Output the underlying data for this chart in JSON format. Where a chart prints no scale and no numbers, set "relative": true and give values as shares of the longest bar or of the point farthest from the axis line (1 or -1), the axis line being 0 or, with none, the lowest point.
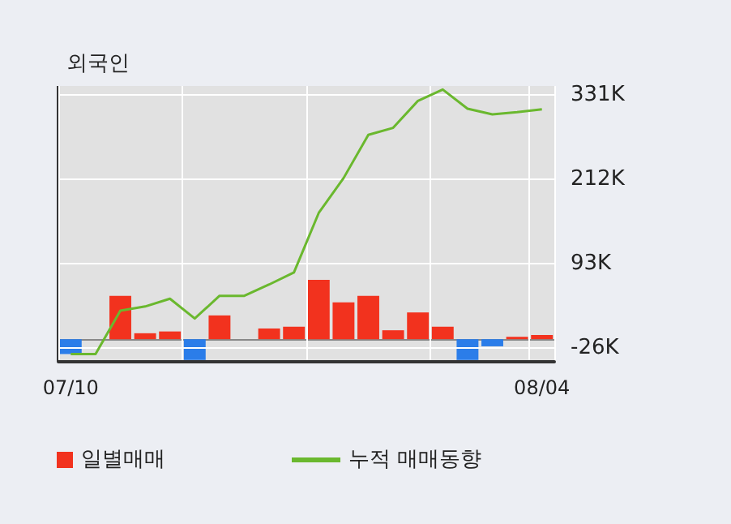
{
  "chart_data": [
    {
      "type": "bar",
      "relative": true,
      "categories": [
        "07/10",
        null,
        null,
        null,
        null,
        null,
        null,
        null,
        null,
        null,
        null,
        null,
        null,
        null,
        null,
        null,
        null,
        null,
        null,
        "08/04"
      ],
      "legend": "bottom left",
      "series": [
        {
          "name": "일별매매",
          "values": [
            -0.25,
            0,
            0.73,
            0.1,
            0.13,
            -0.35,
            0.4,
            0,
            0.18,
            0.21,
            1,
            0.62,
            0.73,
            0.15,
            0.45,
            0.21,
            -0.35,
            -0.12,
            0.04,
            0.07
          ],
          "colors": [
            "#2b7de9",
            "#f2321e",
            "#f2321e",
            "#f2321e",
            "#f2321e",
            "#2b7de9",
            "#f2321e",
            "#f2321e",
            "#f2321e",
            "#f2321e",
            "#f2321e",
            "#f2321e",
            "#f2321e",
            "#f2321e",
            "#f2321e",
            "#f2321e",
            "#2b7de9",
            "#2b7de9",
            "#f2321e",
            "#f2321e"
          ]
        }
      ]
    },
    {
      "type": "line",
      "title": "외국인",
      "tick_labels": "y",
      "legend": "bottom",
      "series": [
        {
          "name": "누적 매매동향",
          "color": "#6ab82e",
          "values": [
            -34,
            -34,
            27,
            33,
            44,
            16,
            48,
            48,
            64,
            81,
            165,
            214,
            275,
            285,
            323,
            339,
            312,
            304,
            307,
            311
          ]
        }
      ],
      "ylim": [
        -45,
        344
      ],
      "yticks": [
        {
          "value": -26,
          "label": "-26K"
        },
        {
          "value": 93,
          "label": "93K"
        },
        {
          "value": 212,
          "label": "212K"
        },
        {
          "value": 331,
          "label": "331K"
        }
      ],
      "grid": true,
      "marker": "none",
      "line_style": "solid"
    }
  ]
}
